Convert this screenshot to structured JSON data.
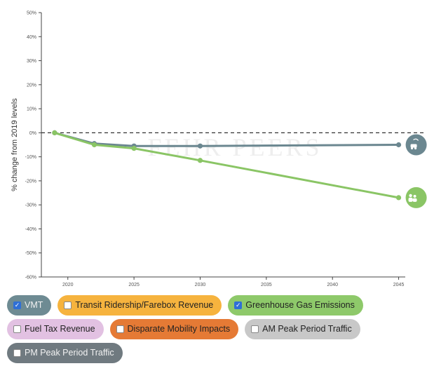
{
  "chart_data": {
    "type": "line",
    "title": "",
    "xlabel": "",
    "ylabel": "% change from 2019 levels",
    "watermark": "FEHR PEERS",
    "x_ticks": [
      "2020",
      "2025",
      "2030",
      "2035",
      "2040",
      "2045"
    ],
    "x_tick_values": [
      2020,
      2025,
      2030,
      2035,
      2040,
      2045
    ],
    "xlim": [
      2018,
      2045.5
    ],
    "y_ticks": [
      "50%",
      "40%",
      "30%",
      "20%",
      "10%",
      "0%",
      "-10%",
      "-20%",
      "-30%",
      "-40%",
      "-50%",
      "-60%"
    ],
    "y_tick_values": [
      50,
      40,
      30,
      20,
      10,
      0,
      -10,
      -20,
      -30,
      -40,
      -50,
      -60
    ],
    "ylim": [
      -60,
      50
    ],
    "baseline": 0,
    "grid": false,
    "series": [
      {
        "name": "VMT",
        "color": "#6b8790",
        "icon": "car-icon",
        "x": [
          2019,
          2022,
          2025,
          2030,
          2045
        ],
        "y": [
          0,
          -4.5,
          -5.5,
          -5.5,
          -5
        ]
      },
      {
        "name": "Greenhouse Gas Emissions",
        "color": "#8ac565",
        "icon": "people-icon",
        "x": [
          2019,
          2022,
          2025,
          2030,
          2045
        ],
        "y": [
          0,
          -5,
          -6.5,
          -11.5,
          -27
        ]
      }
    ]
  },
  "legend": [
    [
      {
        "label": "VMT",
        "checked": true,
        "color": "#6e8b93"
      },
      {
        "label": "Transit Ridership/Farebox Revenue",
        "checked": false,
        "color": "#f6b33e"
      },
      {
        "label": "Greenhouse Gas Emissions",
        "checked": true,
        "color": "#8ec96a"
      }
    ],
    [
      {
        "label": "Fuel Tax Revenue",
        "checked": false,
        "color": "#e2c1e2"
      },
      {
        "label": "Disparate Mobility Impacts",
        "checked": false,
        "color": "#e57a35"
      },
      {
        "label": "AM Peak Period Traffic",
        "checked": false,
        "color": "#c8c8c8"
      }
    ],
    [
      {
        "label": "PM Peak Period Traffic",
        "checked": false,
        "color": "#707a80"
      }
    ]
  ]
}
